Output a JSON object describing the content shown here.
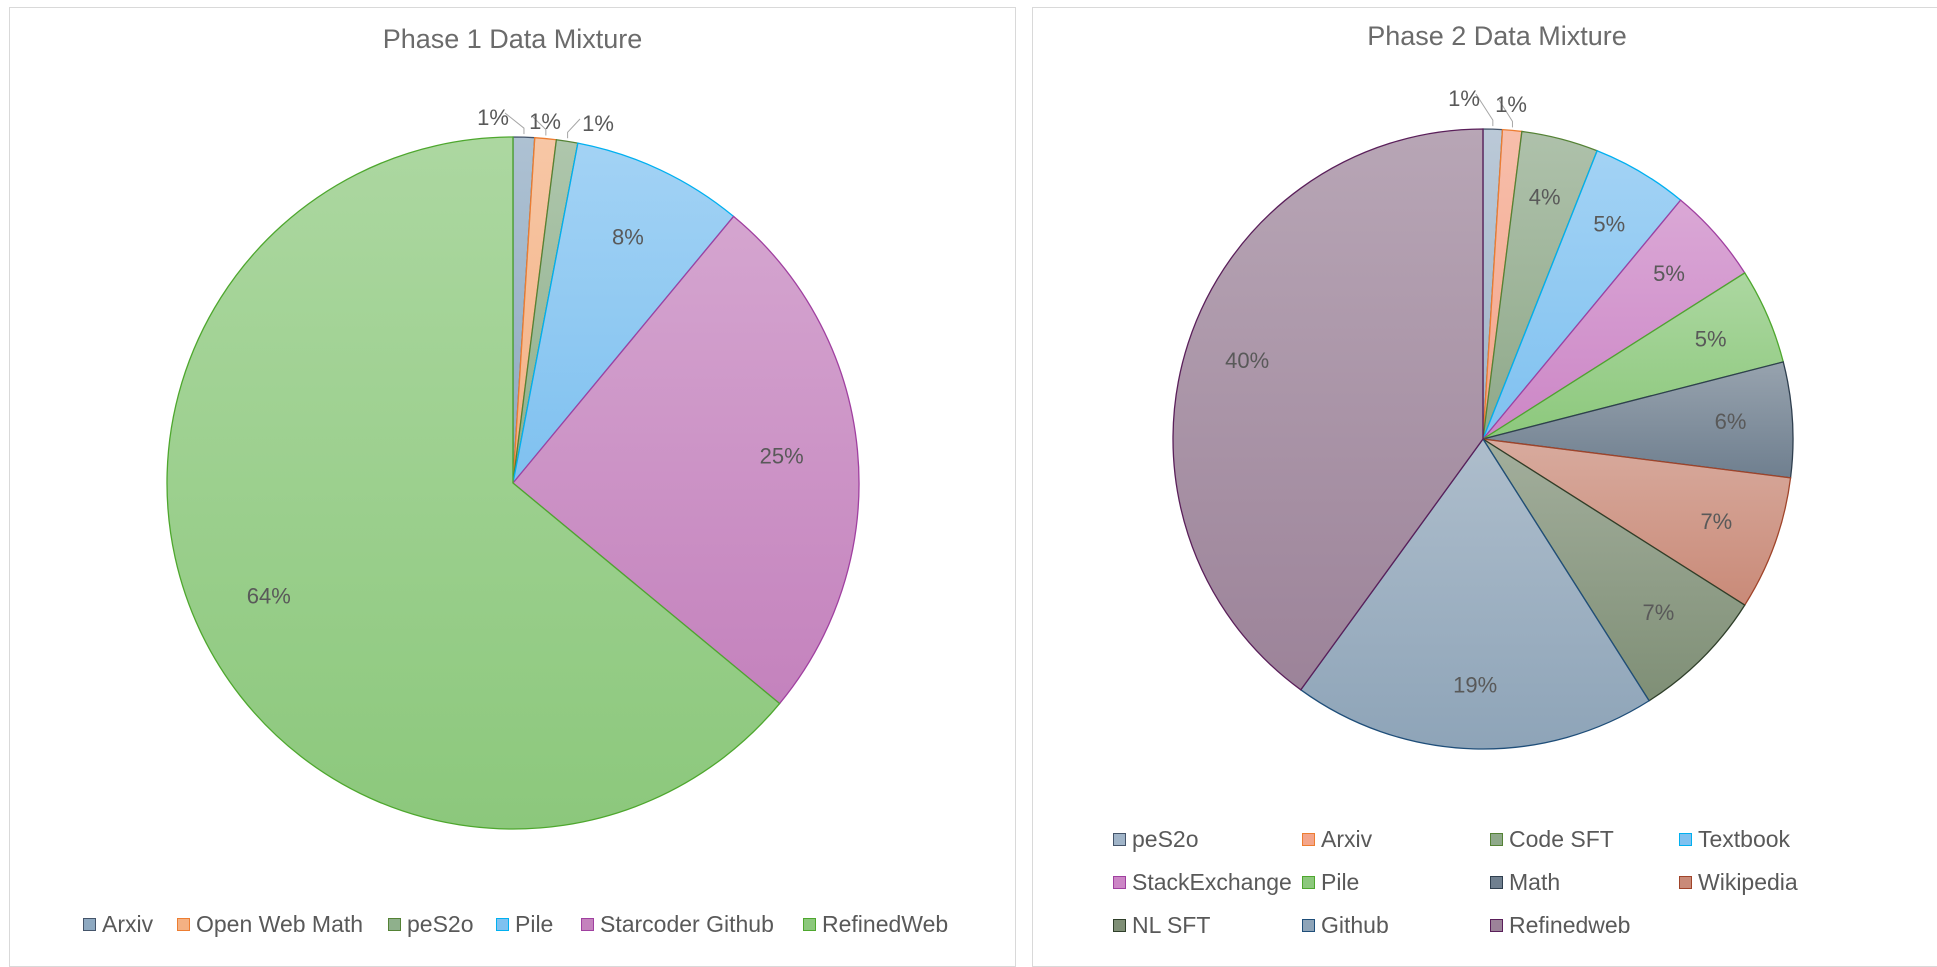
{
  "chart_data": [
    {
      "type": "pie",
      "title": "Phase 1 Data Mixture",
      "categories": [
        "Arxiv",
        "Open Web Math",
        "peS2o",
        "Pile",
        "Starcoder Github",
        "RefinedWeb"
      ],
      "values": [
        1,
        1,
        1,
        8,
        25,
        64
      ],
      "labels": [
        "1%",
        "1%",
        "1%",
        "8%",
        "25%",
        "64%"
      ],
      "colors": [
        "#8ea9c1",
        "#f4b183",
        "#8fb08c",
        "#7fc1f0",
        "#c482bd",
        "#8cc87c"
      ],
      "edge_colors": [
        "#44546a",
        "#ed7d31",
        "#548235",
        "#00b0f0",
        "#a040a0",
        "#4ea72e"
      ],
      "legend_position": "bottom"
    },
    {
      "type": "pie",
      "title": "Phase 2 Data Mixture",
      "categories": [
        "peS2o",
        "Arxiv",
        "Code SFT",
        "Textbook",
        "StackExchange",
        "Pile",
        "Math",
        "Wikipedia",
        "NL SFT",
        "Github",
        "Refinedweb"
      ],
      "values": [
        1,
        1,
        4,
        5,
        5,
        5,
        6,
        7,
        7,
        19,
        40
      ],
      "labels": [
        "1%",
        "1%",
        "4%",
        "5%",
        "5%",
        "5%",
        "6%",
        "7%",
        "7%",
        "19%",
        "40%"
      ],
      "colors": [
        "#a0b4c8",
        "#f4a58a",
        "#8fa98a",
        "#7fc1f0",
        "#cc86c6",
        "#8cc87c",
        "#6f7f8f",
        "#c98a78",
        "#7f8f76",
        "#8ea4b8",
        "#9c8399"
      ],
      "edge_colors": [
        "#44546a",
        "#ed7d31",
        "#548235",
        "#00b0f0",
        "#a040a0",
        "#4ea72e",
        "#2f3f4f",
        "#a0442a",
        "#2f3f2a",
        "#1f4e79",
        "#5a1f5a"
      ],
      "legend_position": "bottom"
    }
  ]
}
